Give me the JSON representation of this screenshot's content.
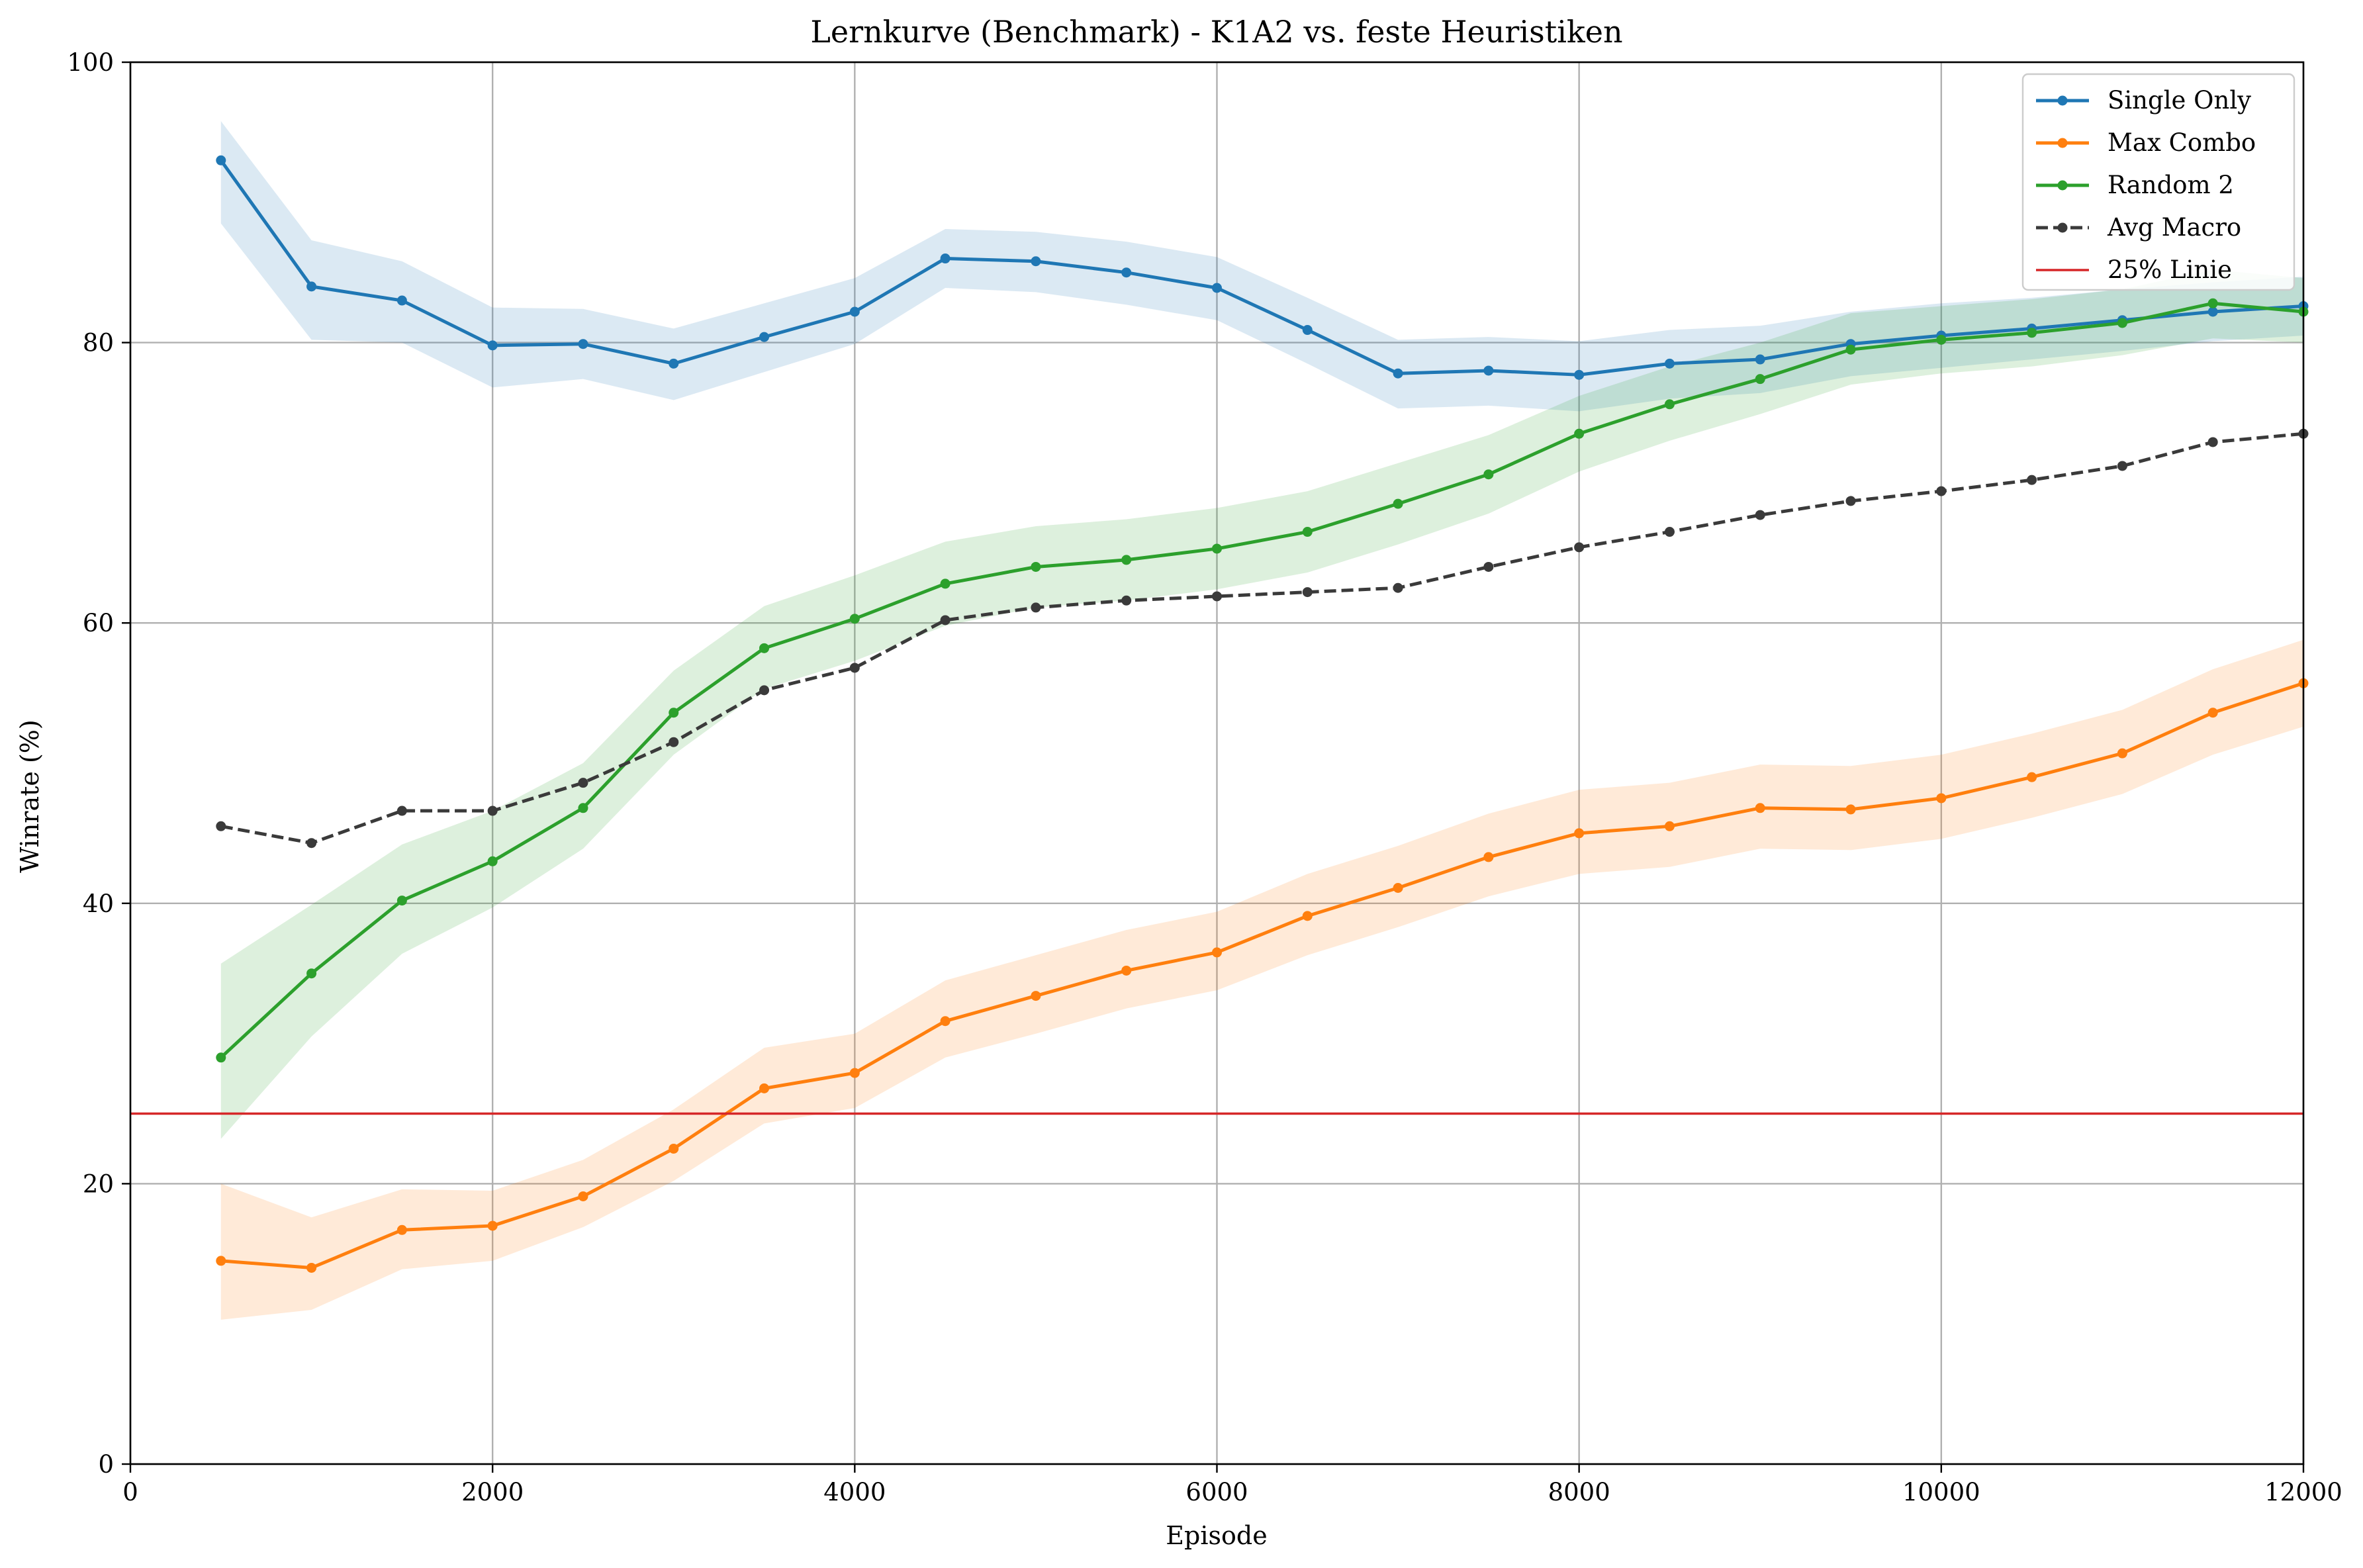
{
  "chart_data": {
    "type": "line",
    "title": "Lernkurve (Benchmark) - K1A2 vs. feste Heuristiken",
    "xlabel": "Episode",
    "ylabel": "Winrate (%)",
    "xlim": [
      0,
      12000
    ],
    "ylim": [
      0,
      100
    ],
    "xticks": [
      "0",
      "2000",
      "4000",
      "6000",
      "8000",
      "10000",
      "12000"
    ],
    "xtick_values": [
      0,
      2000,
      4000,
      6000,
      8000,
      10000,
      12000
    ],
    "yticks": [
      "0",
      "20",
      "40",
      "60",
      "80",
      "100"
    ],
    "ytick_values": [
      0,
      20,
      40,
      60,
      80,
      100
    ],
    "grid": true,
    "legend_position": "top-right",
    "x": [
      500,
      1000,
      1500,
      2000,
      2500,
      3000,
      3500,
      4000,
      4500,
      5000,
      5500,
      6000,
      6500,
      7000,
      7500,
      8000,
      8500,
      9000,
      9500,
      10000,
      10500,
      11000,
      11500,
      12000
    ],
    "series": [
      {
        "name": "Single Only",
        "color": "#1f77b4",
        "style": "solid",
        "marker": true,
        "band": true,
        "values": [
          93.0,
          84.0,
          83.0,
          79.8,
          79.9,
          78.5,
          80.4,
          82.2,
          86.0,
          85.8,
          85.0,
          83.9,
          80.9,
          77.8,
          78.0,
          77.7,
          78.5,
          78.8,
          79.9,
          80.5,
          81.0,
          81.6,
          82.2,
          82.6
        ],
        "lower": [
          88.5,
          80.2,
          80.0,
          76.8,
          77.4,
          75.9,
          77.9,
          79.9,
          83.9,
          83.6,
          82.7,
          81.6,
          78.5,
          75.3,
          75.5,
          75.1,
          76.0,
          76.4,
          77.6,
          78.2,
          78.8,
          79.4,
          80.1,
          80.5
        ],
        "upper": [
          95.8,
          87.3,
          85.8,
          82.5,
          82.4,
          81.0,
          82.8,
          84.6,
          88.1,
          87.9,
          87.2,
          86.1,
          83.2,
          80.2,
          80.4,
          80.1,
          80.9,
          81.2,
          82.2,
          82.8,
          83.2,
          83.8,
          84.3,
          84.7
        ]
      },
      {
        "name": "Max Combo",
        "color": "#ff7f0e",
        "style": "solid",
        "marker": true,
        "band": true,
        "values": [
          14.5,
          14.0,
          16.7,
          17.0,
          19.1,
          22.5,
          26.8,
          27.9,
          31.6,
          33.4,
          35.2,
          36.5,
          39.1,
          41.1,
          43.3,
          45.0,
          45.5,
          46.8,
          46.7,
          47.5,
          49.0,
          50.7,
          53.6,
          55.7
        ],
        "lower": [
          10.3,
          11.0,
          13.9,
          14.5,
          16.9,
          20.2,
          24.3,
          25.4,
          29.0,
          30.7,
          32.5,
          33.8,
          36.3,
          38.3,
          40.5,
          42.1,
          42.6,
          43.9,
          43.8,
          44.6,
          46.1,
          47.8,
          50.6,
          52.6
        ],
        "upper": [
          20.0,
          17.6,
          19.6,
          19.5,
          21.7,
          25.3,
          29.7,
          30.7,
          34.5,
          36.3,
          38.1,
          39.4,
          42.1,
          44.1,
          46.4,
          48.1,
          48.6,
          49.9,
          49.8,
          50.6,
          52.1,
          53.8,
          56.7,
          58.8
        ]
      },
      {
        "name": "Random 2",
        "color": "#2ca02c",
        "style": "solid",
        "marker": true,
        "band": true,
        "values": [
          29.0,
          35.0,
          40.2,
          43.0,
          46.8,
          53.6,
          58.2,
          60.3,
          62.8,
          64.0,
          64.5,
          65.3,
          66.5,
          68.5,
          70.6,
          73.5,
          75.6,
          77.4,
          79.5,
          80.2,
          80.7,
          81.4,
          82.8,
          82.2
        ],
        "lower": [
          23.2,
          30.5,
          36.4,
          39.7,
          43.9,
          50.6,
          55.3,
          57.3,
          59.8,
          61.1,
          61.6,
          62.4,
          63.6,
          65.6,
          67.8,
          70.8,
          73.0,
          74.9,
          77.0,
          77.8,
          78.3,
          79.1,
          80.3,
          80.0
        ],
        "upper": [
          35.7,
          39.9,
          44.2,
          46.6,
          50.0,
          56.6,
          61.2,
          63.4,
          65.8,
          66.9,
          67.4,
          68.2,
          69.4,
          71.4,
          73.4,
          76.2,
          78.3,
          80.0,
          82.1,
          82.6,
          83.1,
          83.8,
          85.2,
          84.6
        ]
      },
      {
        "name": "Avg Macro",
        "color": "#3a3a3a",
        "style": "dashed",
        "marker": true,
        "band": false,
        "values": [
          45.5,
          44.3,
          46.6,
          46.6,
          48.6,
          51.5,
          55.2,
          56.8,
          60.2,
          61.1,
          61.6,
          61.9,
          62.2,
          62.5,
          64.0,
          65.4,
          66.5,
          67.7,
          68.7,
          69.4,
          70.2,
          71.2,
          72.9,
          73.5
        ]
      },
      {
        "name": "25% Linie",
        "color": "#d62728",
        "style": "hline",
        "marker": false,
        "band": false,
        "value": 25
      }
    ]
  }
}
